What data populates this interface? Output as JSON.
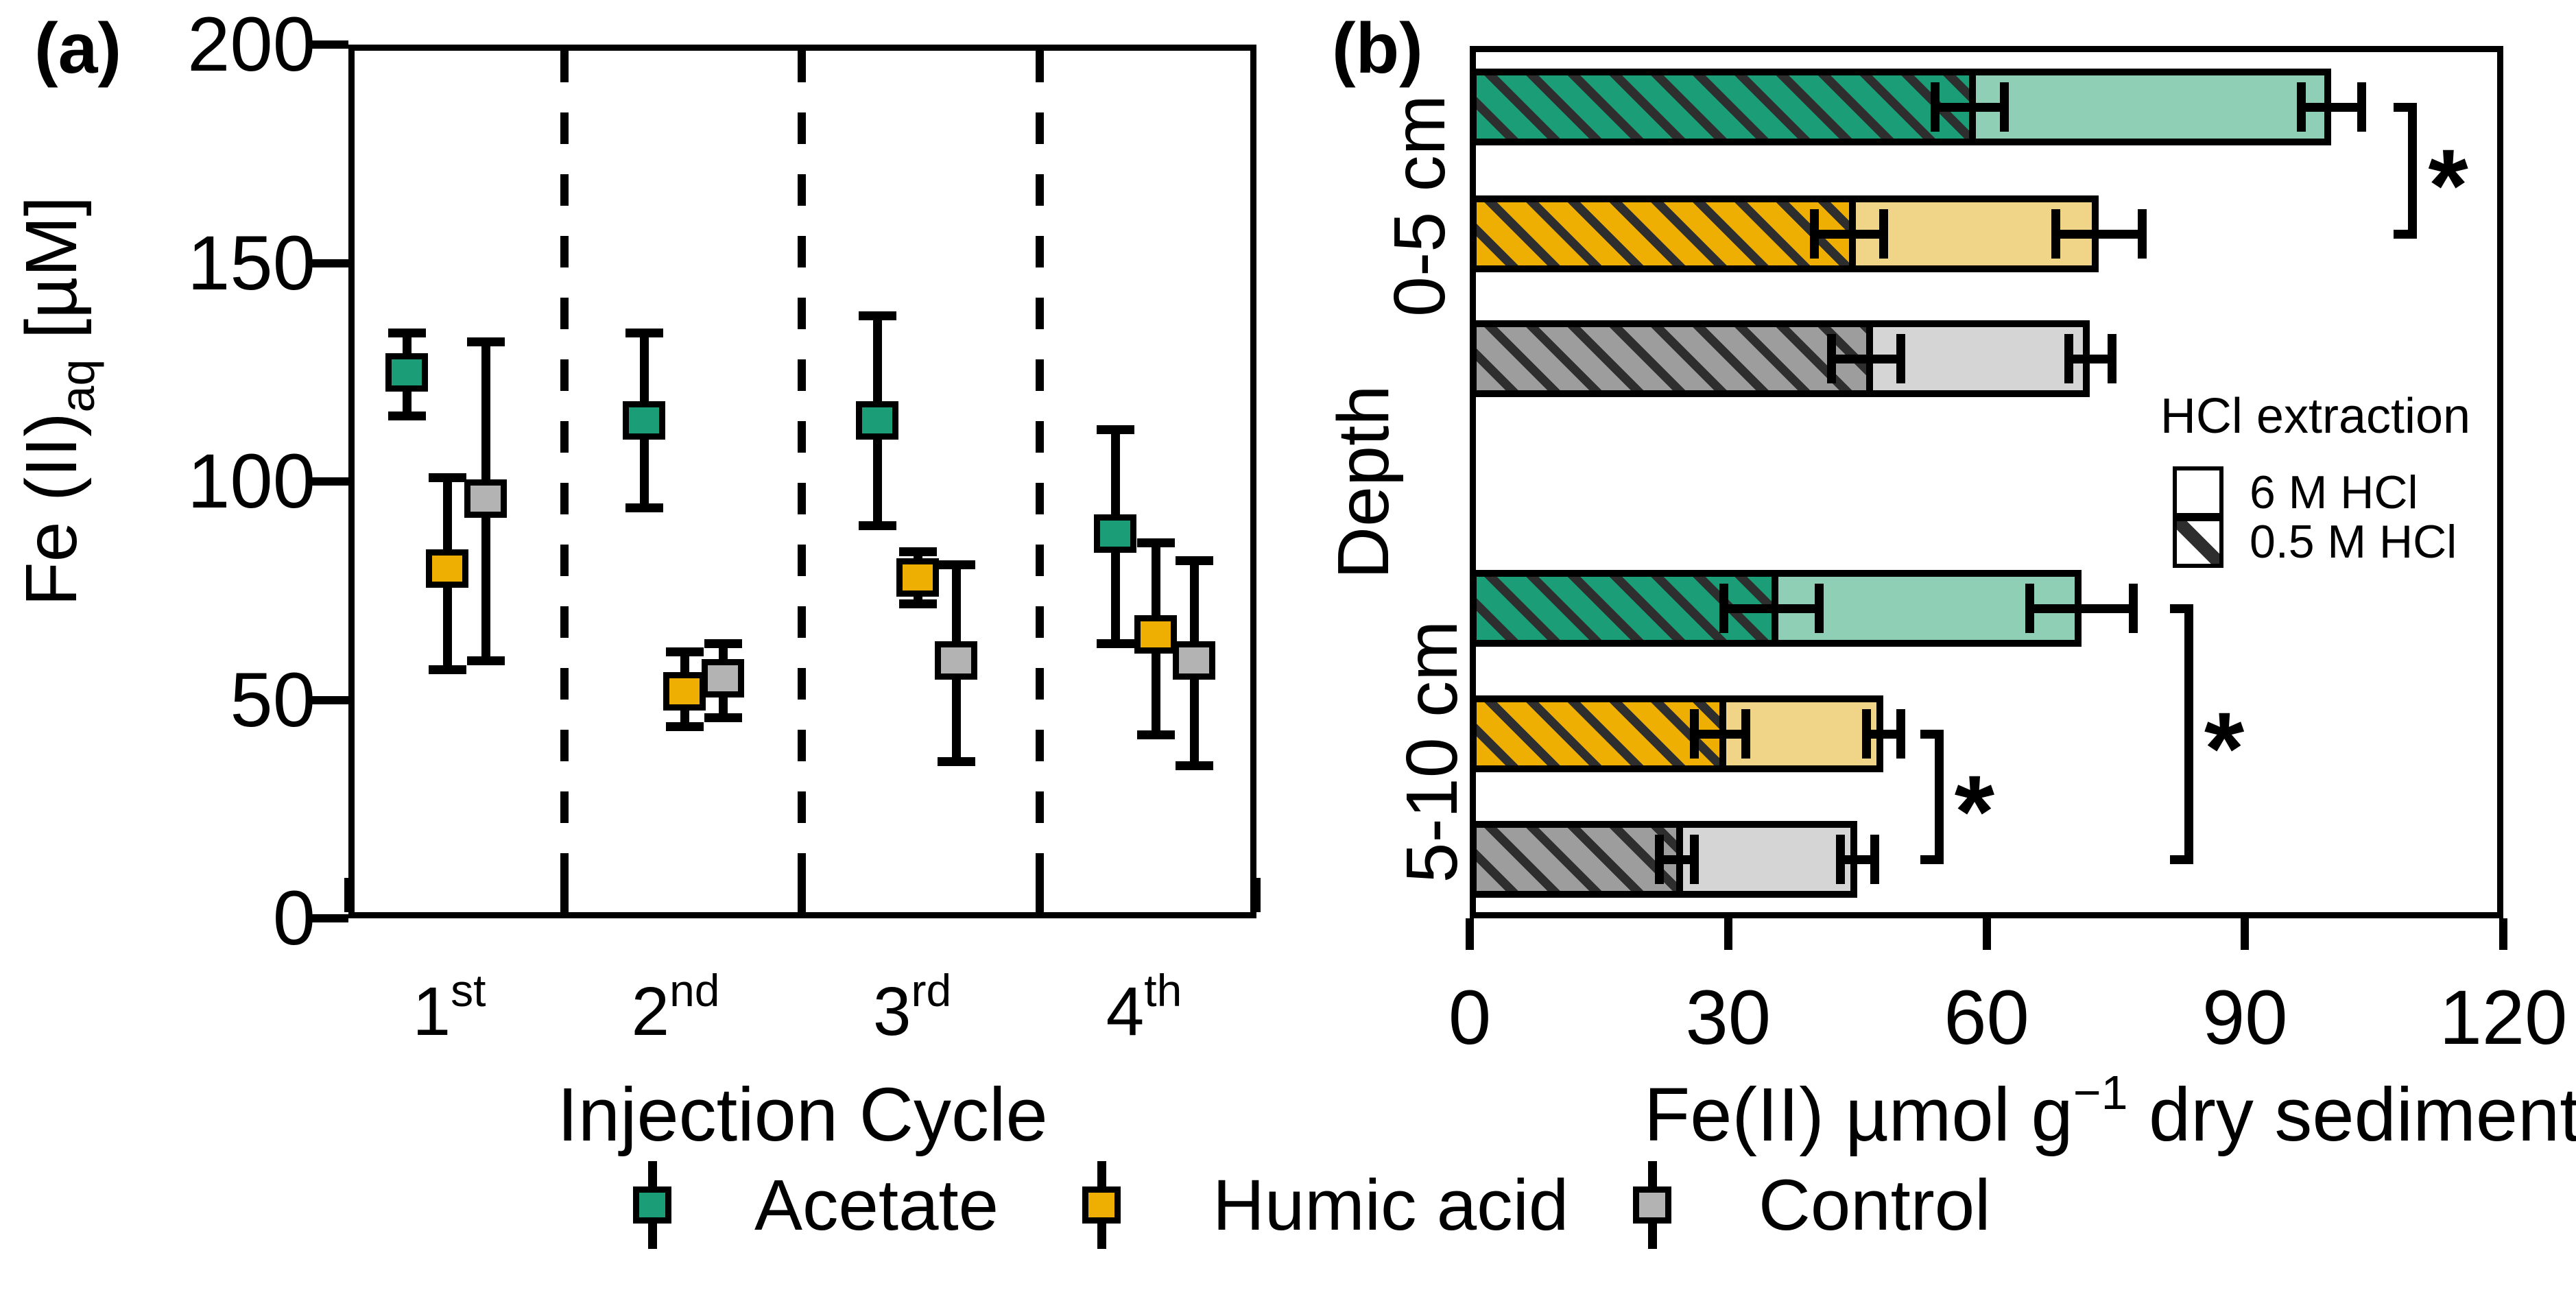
{
  "panel_a": {
    "label": "(a)",
    "ylabel": {
      "pre": "Fe (II)",
      "sub": "aq",
      "post": " [µM]"
    },
    "xlabel": "Injection Cycle",
    "categories": [
      {
        "base": "1",
        "sup": "st"
      },
      {
        "base": "2",
        "sup": "nd"
      },
      {
        "base": "3",
        "sup": "rd"
      },
      {
        "base": "4",
        "sup": "th"
      }
    ]
  },
  "panel_b": {
    "label": "(b)",
    "ylabel": "Depth",
    "group_labels": [
      "0-5 cm",
      "5-10 cm"
    ],
    "xlabel": {
      "pre": "Fe(II) µmol g",
      "sup": "−1",
      "post": " dry sediment"
    },
    "hcl_legend": {
      "title": "HCl extraction",
      "items": [
        {
          "label": "6 M HCl",
          "hatched": false
        },
        {
          "label": "0.5 M HCl",
          "hatched": true
        }
      ]
    }
  },
  "treatment_legend": [
    {
      "label": "Acetate",
      "color": "#1b9e77",
      "bar": "#1b9e77",
      "light": "#8ecfb6"
    },
    {
      "label": "Humic acid",
      "color": "#efae02",
      "bar": "#efae02",
      "light": "#f0d488"
    },
    {
      "label": "Control",
      "color": "#b3b3b3",
      "bar": "#9d9d9d",
      "light": "#d5d5d5"
    }
  ],
  "colors": {
    "hatch_stripe": "#2e2e2e",
    "axis": "#000000",
    "background": "#ffffff"
  },
  "chart_data": [
    {
      "id": "a",
      "type": "scatter",
      "title": "(a)",
      "xlabel": "Injection Cycle",
      "ylabel": "Fe (II)aq [µM]",
      "ylim": [
        0,
        200
      ],
      "yticks": [
        0,
        50,
        100,
        150,
        200
      ],
      "categories": [
        "1st",
        "2nd",
        "3rd",
        "4th"
      ],
      "legend_position": "bottom",
      "grid": "dashed vertical separators between cycles",
      "series": [
        {
          "name": "Acetate",
          "color": "#1b9e77",
          "values": [
            125,
            114,
            114,
            88
          ],
          "err_low": [
            115,
            94,
            90,
            63
          ],
          "err_high": [
            134,
            134,
            138,
            112
          ]
        },
        {
          "name": "Humic acid",
          "color": "#efae02",
          "values": [
            80,
            52,
            78,
            65
          ],
          "err_low": [
            57,
            44,
            72,
            42
          ],
          "err_high": [
            101,
            61,
            84,
            86
          ]
        },
        {
          "name": "Control",
          "color": "#b3b3b3",
          "values": [
            96,
            55,
            59,
            59
          ],
          "err_low": [
            59,
            46,
            36,
            35
          ],
          "err_high": [
            132,
            63,
            81,
            82
          ]
        }
      ]
    },
    {
      "id": "b",
      "type": "stacked_bar_horizontal",
      "title": "(b)",
      "xlabel": "Fe(II) µmol g−1 dry sediment",
      "ylabel": "Depth",
      "xlim": [
        0,
        120
      ],
      "xticks": [
        0,
        30,
        60,
        90,
        120
      ],
      "groups": [
        "0-5 cm",
        "5-10 cm"
      ],
      "stack_legend": {
        "title": "HCl extraction",
        "segments": [
          "6 M HCl",
          "0.5 M HCl"
        ]
      },
      "bars": [
        {
          "group": "0-5 cm",
          "treatment": "Acetate",
          "hcl_0_5_M": 58,
          "total": 100,
          "err_hcl_0_5": 4,
          "err_total": 3.5
        },
        {
          "group": "0-5 cm",
          "treatment": "Humic acid",
          "hcl_0_5_M": 44,
          "total": 73,
          "err_hcl_0_5": 4,
          "err_total": 5
        },
        {
          "group": "0-5 cm",
          "treatment": "Control",
          "hcl_0_5_M": 46,
          "total": 72,
          "err_hcl_0_5": 4,
          "err_total": 2.5
        },
        {
          "group": "5-10 cm",
          "treatment": "Acetate",
          "hcl_0_5_M": 35,
          "total": 71,
          "err_hcl_0_5": 5.5,
          "err_total": 6
        },
        {
          "group": "5-10 cm",
          "treatment": "Humic acid",
          "hcl_0_5_M": 29,
          "total": 48,
          "err_hcl_0_5": 3,
          "err_total": 2
        },
        {
          "group": "5-10 cm",
          "treatment": "Control",
          "hcl_0_5_M": 24,
          "total": 45,
          "err_hcl_0_5": 2,
          "err_total": 2
        }
      ],
      "significance": [
        {
          "symbol": "*",
          "between": [
            "0-5 cm Acetate",
            "0-5 cm Humic acid"
          ],
          "rows": [
            0,
            1
          ],
          "x": 110
        },
        {
          "symbol": "*",
          "between": [
            "5-10 cm Humic acid",
            "5-10 cm Control"
          ],
          "rows": [
            4,
            5
          ],
          "x": 55
        },
        {
          "symbol": "*",
          "between": [
            "5-10 cm Acetate",
            "5-10 cm Control"
          ],
          "rows": [
            3,
            5
          ],
          "x": 84
        }
      ]
    }
  ]
}
